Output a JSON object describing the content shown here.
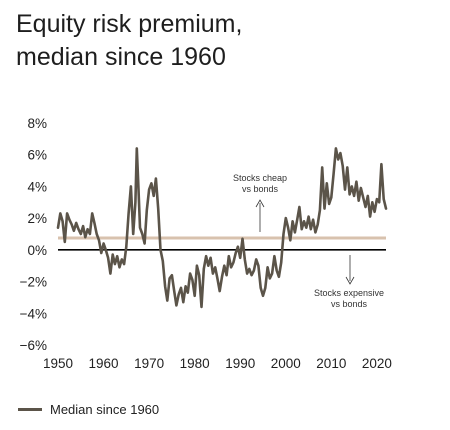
{
  "title_lines": [
    "Equity risk premium,",
    "median since 1960"
  ],
  "chart_data": {
    "type": "line",
    "x_ticks": [
      1950,
      1960,
      1970,
      1980,
      1990,
      2000,
      2010,
      2020
    ],
    "y_ticks": [
      "8%",
      "6%",
      "4%",
      "2%",
      "0%",
      "−2%",
      "−4%",
      "−6%"
    ],
    "y_tick_values": [
      8,
      6,
      4,
      2,
      0,
      -2,
      -4,
      -6
    ],
    "xlim": [
      1950,
      2022
    ],
    "ylim": [
      -6,
      8
    ],
    "grid": false,
    "legend_position": "bottom-left",
    "median_value": 0.75,
    "annotations": [
      {
        "text": [
          "Stocks cheap",
          "vs bonds"
        ],
        "arrow": "up"
      },
      {
        "text": [
          "Stocks expensive",
          "vs bonds"
        ],
        "arrow": "down"
      }
    ],
    "series": [
      {
        "name": "Median since 1960",
        "color": "#5b5449",
        "x": [
          1950,
          1950.5,
          1951,
          1951.5,
          1952,
          1952.5,
          1953,
          1953.5,
          1954,
          1954.5,
          1955,
          1955.5,
          1956,
          1956.5,
          1957,
          1957.5,
          1958,
          1958.5,
          1959,
          1959.5,
          1960,
          1960.5,
          1961,
          1961.5,
          1962,
          1962.5,
          1963,
          1963.5,
          1964,
          1964.5,
          1965,
          1965.5,
          1966,
          1966.5,
          1967,
          1967.3,
          1967.6,
          1968,
          1968.5,
          1969,
          1969.5,
          1970,
          1970.5,
          1971,
          1971.5,
          1972,
          1972.5,
          1973,
          1973.5,
          1974,
          1974.5,
          1975,
          1975.5,
          1976,
          1976.5,
          1977,
          1977.5,
          1978,
          1978.5,
          1979,
          1979.5,
          1980,
          1980.5,
          1981,
          1981.5,
          1982,
          1982.5,
          1983,
          1983.5,
          1984,
          1984.5,
          1985,
          1985.5,
          1986,
          1986.5,
          1987,
          1987.5,
          1988,
          1988.5,
          1989,
          1989.5,
          1990,
          1990.5,
          1991,
          1991.5,
          1992,
          1992.5,
          1993,
          1993.5,
          1994,
          1994.5,
          1995,
          1995.5,
          1996,
          1996.5,
          1997,
          1997.5,
          1998,
          1998.5,
          1999,
          1999.5,
          2000,
          2000.5,
          2001,
          2001.5,
          2002,
          2002.5,
          2003,
          2003.5,
          2004,
          2004.5,
          2005,
          2005.5,
          2006,
          2006.5,
          2007,
          2007.5,
          2008,
          2008.5,
          2009,
          2009.5,
          2010,
          2010.5,
          2011,
          2011.5,
          2012,
          2012.5,
          2013,
          2013.5,
          2014,
          2014.5,
          2015,
          2015.5,
          2016,
          2016.5,
          2017,
          2017.5,
          2018,
          2018.5,
          2019,
          2019.5,
          2020,
          2020.5,
          2021,
          2021.5,
          2022
        ],
        "values": [
          1.4,
          2.3,
          1.8,
          0.5,
          2.3,
          1.9,
          1.6,
          1.2,
          1.7,
          1.3,
          1.0,
          1.5,
          0.8,
          1.3,
          1.0,
          2.3,
          1.7,
          1.0,
          0.6,
          -0.2,
          0.4,
          0.0,
          -0.5,
          -1.5,
          -0.3,
          -0.9,
          -0.4,
          -1.1,
          -0.6,
          -0.9,
          0.2,
          2.3,
          4.0,
          1.0,
          3.0,
          6.4,
          4.3,
          1.4,
          1.0,
          0.4,
          2.5,
          3.8,
          4.2,
          3.4,
          4.5,
          2.6,
          0.0,
          -0.7,
          -2.3,
          -3.2,
          -1.8,
          -1.6,
          -2.6,
          -3.5,
          -2.8,
          -2.4,
          -3.3,
          -2.3,
          -2.7,
          -1.5,
          -1.9,
          -2.9,
          -1.0,
          -1.6,
          -3.6,
          -1.2,
          -0.4,
          -1.0,
          -0.5,
          -1.5,
          -1.1,
          -1.8,
          -2.6,
          -1.7,
          -1.0,
          -1.6,
          -0.4,
          -1.1,
          -0.8,
          -0.2,
          0.2,
          -0.5,
          0.7,
          -0.6,
          -1.5,
          -1.2,
          -1.6,
          -1.3,
          -0.6,
          -1.0,
          -2.4,
          -2.9,
          -2.4,
          -1.1,
          -1.8,
          -1.5,
          -0.4,
          -1.3,
          -1.7,
          -0.8,
          1.0,
          2.0,
          1.4,
          0.6,
          1.8,
          1.1,
          1.9,
          2.7,
          1.3,
          1.8,
          1.4,
          2.1,
          1.3,
          1.9,
          1.1,
          1.6,
          2.5,
          5.2,
          2.6,
          4.2,
          2.9,
          3.3,
          4.8,
          6.4,
          5.7,
          6.1,
          5.3,
          3.8,
          5.2,
          3.5,
          4.0,
          3.4,
          4.3,
          3.1,
          3.9,
          3.3,
          2.7,
          3.4,
          2.1,
          3.0,
          2.4,
          3.2,
          3.0,
          5.4,
          3.2,
          2.6
        ]
      }
    ]
  },
  "legend": {
    "label": "Median since 1960",
    "color": "#5b5449"
  }
}
